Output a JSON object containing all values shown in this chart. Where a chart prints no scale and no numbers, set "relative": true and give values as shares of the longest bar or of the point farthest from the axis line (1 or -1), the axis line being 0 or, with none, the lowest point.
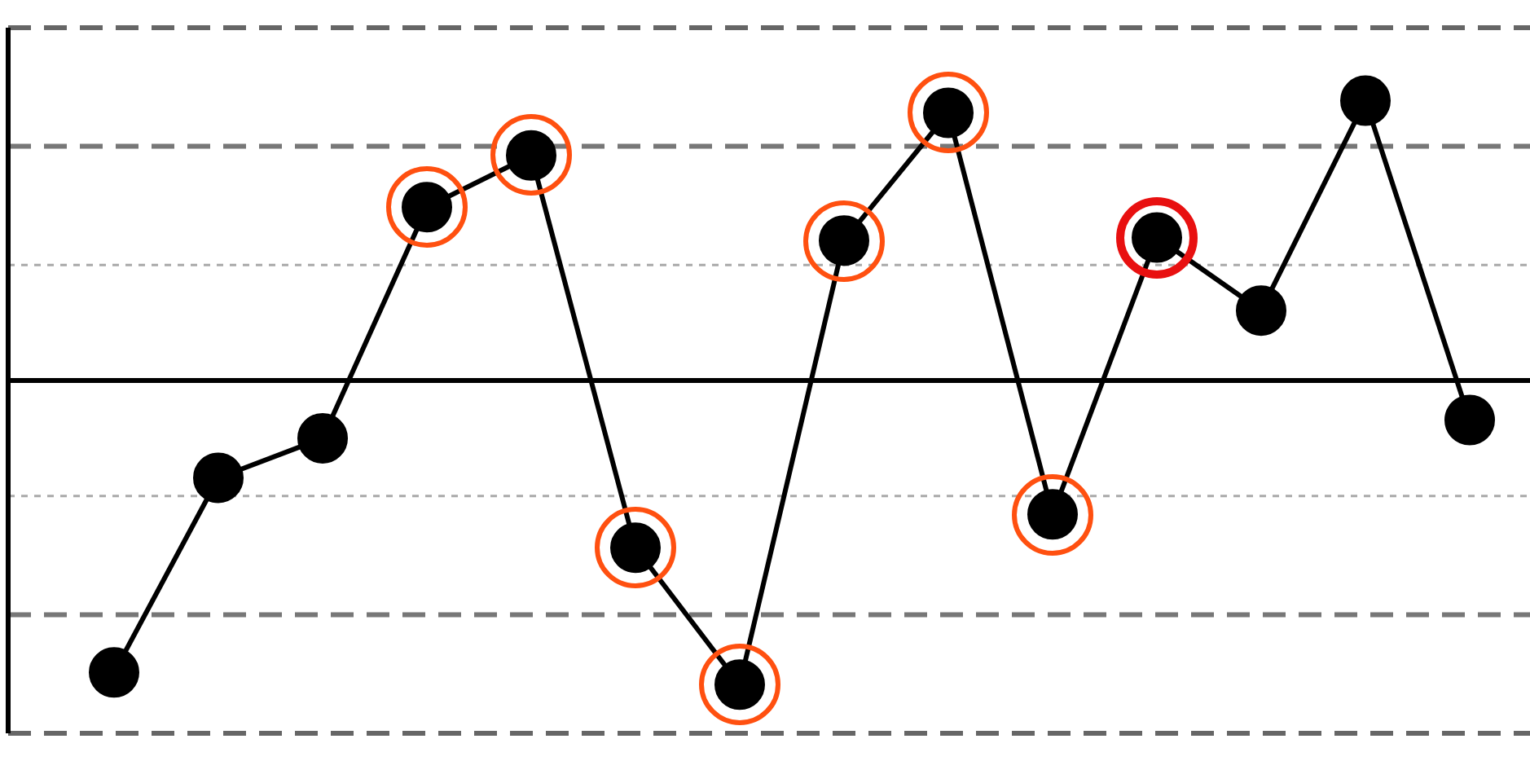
{
  "chart_data": {
    "type": "line",
    "relative": true,
    "legend": false,
    "grid": false,
    "marker": "circle",
    "line_style": "solid",
    "categories": [
      null,
      null,
      null,
      null,
      null,
      null,
      null,
      null,
      null,
      null,
      null,
      null,
      null,
      null
    ],
    "series": [
      {
        "type": "line",
        "color": "#000000",
        "values": [
          -0.96,
          -0.32,
          -0.19,
          0.57,
          0.74,
          -0.55,
          -1,
          0.46,
          0.88,
          -0.44,
          0.47,
          0.23,
          0.92,
          -0.13
        ]
      }
    ],
    "ref_lines": [
      {
        "axis": "y",
        "value": 0.38,
        "color": "#aaaaaa",
        "line_style": "dotted"
      },
      {
        "axis": "y",
        "value": -0.38,
        "color": "#aaaaaa",
        "line_style": "dotted"
      },
      {
        "axis": "y",
        "value": 0.77,
        "color": "#777777",
        "line_style": "dashed"
      },
      {
        "axis": "y",
        "value": -0.77,
        "color": "#777777",
        "line_style": "dashed"
      },
      {
        "axis": "y",
        "value": 1.16,
        "color": "#666666",
        "line_style": "dashed"
      },
      {
        "axis": "y",
        "value": -1.16,
        "color": "#666666",
        "line_style": "dashed"
      }
    ]
  }
}
